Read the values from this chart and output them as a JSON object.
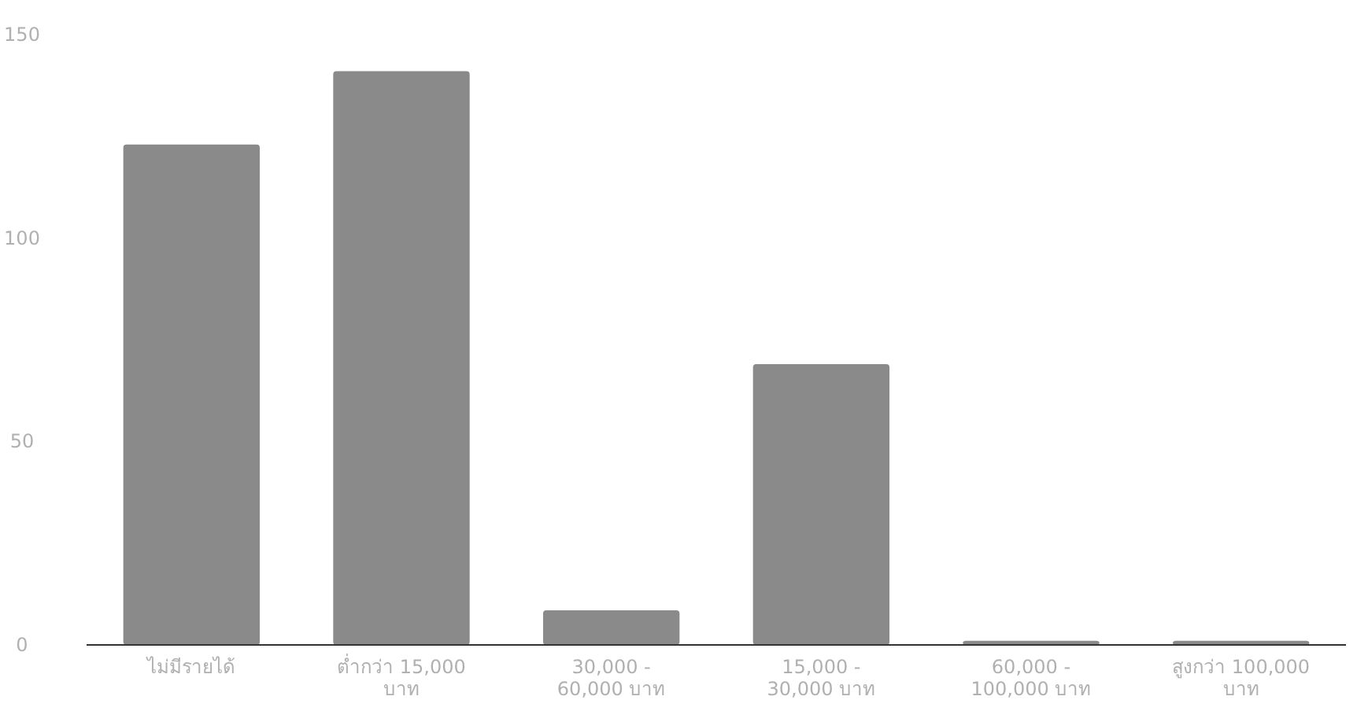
{
  "chart_data": {
    "type": "bar",
    "categories": [
      "ไม่มีรายได้",
      "ต่ำกว่า 15,000 บาท",
      "30,000 - 60,000 บาท",
      "15,000 - 30,000 บาท",
      "60,000 - 100,000 บาท",
      "สูงกว่า 100,000 บาท"
    ],
    "values": [
      123,
      141,
      8.5,
      69,
      1,
      1
    ],
    "color": "#8a8a8a",
    "ylim": [
      0,
      150
    ],
    "yticks": [
      0,
      50,
      100,
      150
    ],
    "grid": false
  }
}
